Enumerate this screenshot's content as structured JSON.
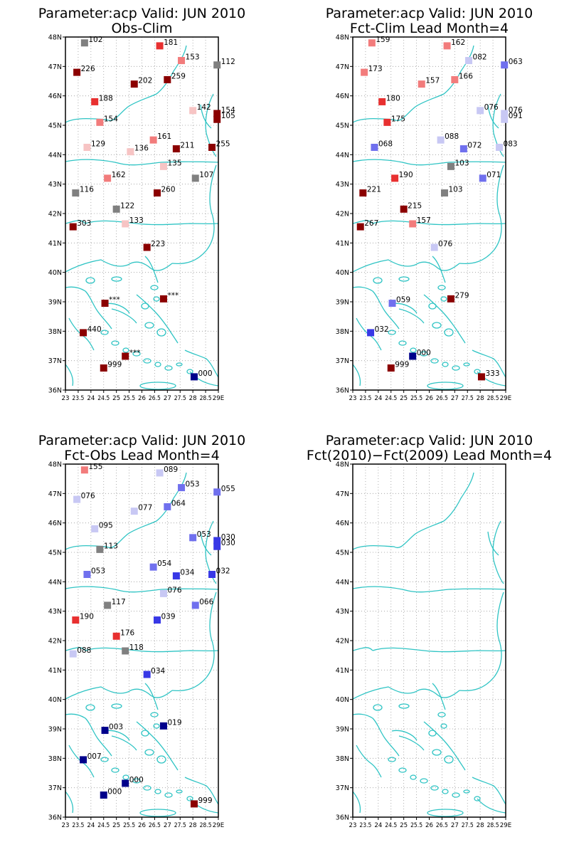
{
  "axes": {
    "lat_ticks": [
      "36N",
      "37N",
      "38N",
      "39N",
      "40N",
      "41N",
      "42N",
      "43N",
      "44N",
      "45N",
      "46N",
      "47N",
      "48N"
    ],
    "lon_ticks": [
      "23",
      "23.5",
      "24",
      "24.5",
      "25",
      "25.5",
      "26",
      "26.5",
      "27",
      "27.5",
      "28",
      "28.5",
      "29E"
    ],
    "lon_range": [
      23,
      29
    ],
    "lat_range": [
      36,
      48
    ]
  },
  "colors": {
    "coast": "#2fc4c4",
    "grid": "#9a9a9a",
    "frame": "#000000",
    "scale": {
      "gray": "#808080",
      "dark_red": "#8b0000",
      "red": "#e83030",
      "salmon": "#f27c7c",
      "pink": "#f7c4c4",
      "light_blue": "#c8c8f4",
      "blue": "#7070ee",
      "med_blue": "#3838e6",
      "dark_blue": "#00008b"
    }
  },
  "panels": [
    {
      "title1": "Parameter:acp Valid: JUN 2010",
      "title2": "Obs-Clim",
      "points": [
        {
          "lon": 23.75,
          "lat": 47.8,
          "label": "102",
          "c": "gray"
        },
        {
          "lon": 26.7,
          "lat": 47.7,
          "label": "181",
          "c": "red"
        },
        {
          "lon": 27.55,
          "lat": 47.2,
          "label": "153",
          "c": "salmon"
        },
        {
          "lon": 28.95,
          "lat": 47.05,
          "label": "112",
          "c": "gray"
        },
        {
          "lon": 23.45,
          "lat": 46.8,
          "label": "226",
          "c": "dark_red"
        },
        {
          "lon": 25.7,
          "lat": 46.4,
          "label": "202",
          "c": "dark_red"
        },
        {
          "lon": 27.0,
          "lat": 46.55,
          "label": "259",
          "c": "dark_red"
        },
        {
          "lon": 24.15,
          "lat": 45.8,
          "label": "188",
          "c": "red"
        },
        {
          "lon": 28.0,
          "lat": 45.5,
          "label": "142",
          "c": "pink"
        },
        {
          "lon": 28.95,
          "lat": 45.4,
          "label": "154",
          "c": "dark_red"
        },
        {
          "lon": 28.95,
          "lat": 45.2,
          "label": "105",
          "c": "dark_red"
        },
        {
          "lon": 24.35,
          "lat": 45.1,
          "label": "154",
          "c": "salmon"
        },
        {
          "lon": 26.45,
          "lat": 44.5,
          "label": "161",
          "c": "salmon"
        },
        {
          "lon": 23.85,
          "lat": 44.25,
          "label": "129",
          "c": "pink"
        },
        {
          "lon": 25.55,
          "lat": 44.1,
          "label": "136",
          "c": "pink"
        },
        {
          "lon": 27.35,
          "lat": 44.2,
          "label": "211",
          "c": "dark_red"
        },
        {
          "lon": 28.75,
          "lat": 44.25,
          "label": "255",
          "c": "dark_red"
        },
        {
          "lon": 26.85,
          "lat": 43.6,
          "label": "135",
          "c": "pink"
        },
        {
          "lon": 28.1,
          "lat": 43.2,
          "label": "107",
          "c": "gray"
        },
        {
          "lon": 24.65,
          "lat": 43.2,
          "label": "162",
          "c": "salmon"
        },
        {
          "lon": 23.4,
          "lat": 42.7,
          "label": "116",
          "c": "gray"
        },
        {
          "lon": 26.6,
          "lat": 42.7,
          "label": "260",
          "c": "dark_red"
        },
        {
          "lon": 25.0,
          "lat": 42.15,
          "label": "122",
          "c": "gray"
        },
        {
          "lon": 25.35,
          "lat": 41.65,
          "label": "133",
          "c": "pink"
        },
        {
          "lon": 23.3,
          "lat": 41.55,
          "label": "303",
          "c": "dark_red"
        },
        {
          "lon": 26.2,
          "lat": 40.85,
          "label": "223",
          "c": "dark_red"
        },
        {
          "lon": 24.55,
          "lat": 38.95,
          "label": "***",
          "c": "dark_red"
        },
        {
          "lon": 26.85,
          "lat": 39.1,
          "label": "***",
          "c": "dark_red"
        },
        {
          "lon": 23.7,
          "lat": 37.95,
          "label": "440",
          "c": "dark_red"
        },
        {
          "lon": 25.35,
          "lat": 37.15,
          "label": "***",
          "c": "dark_red"
        },
        {
          "lon": 24.5,
          "lat": 36.75,
          "label": "999",
          "c": "dark_red"
        },
        {
          "lon": 28.05,
          "lat": 36.45,
          "label": "000",
          "c": "dark_blue"
        }
      ]
    },
    {
      "title1": "Parameter:acp Valid: JUN 2010",
      "title2": "Fct-Clim Lead Month=4",
      "points": [
        {
          "lon": 23.75,
          "lat": 47.8,
          "label": "159",
          "c": "salmon"
        },
        {
          "lon": 26.7,
          "lat": 47.7,
          "label": "162",
          "c": "salmon"
        },
        {
          "lon": 27.55,
          "lat": 47.2,
          "label": "082",
          "c": "light_blue"
        },
        {
          "lon": 28.95,
          "lat": 47.05,
          "label": "063",
          "c": "blue"
        },
        {
          "lon": 23.45,
          "lat": 46.8,
          "label": "173",
          "c": "salmon"
        },
        {
          "lon": 25.7,
          "lat": 46.4,
          "label": "157",
          "c": "salmon"
        },
        {
          "lon": 27.0,
          "lat": 46.55,
          "label": "166",
          "c": "salmon"
        },
        {
          "lon": 24.15,
          "lat": 45.8,
          "label": "180",
          "c": "red"
        },
        {
          "lon": 28.0,
          "lat": 45.5,
          "label": "076",
          "c": "light_blue"
        },
        {
          "lon": 28.95,
          "lat": 45.4,
          "label": "076",
          "c": "light_blue"
        },
        {
          "lon": 28.95,
          "lat": 45.2,
          "label": "091",
          "c": "light_blue"
        },
        {
          "lon": 24.35,
          "lat": 45.1,
          "label": "175",
          "c": "red"
        },
        {
          "lon": 26.45,
          "lat": 44.5,
          "label": "088",
          "c": "light_blue"
        },
        {
          "lon": 23.85,
          "lat": 44.25,
          "label": "068",
          "c": "blue"
        },
        {
          "lon": 25.55,
          "lat": 44.1,
          "label": "",
          "c": "none"
        },
        {
          "lon": 27.35,
          "lat": 44.2,
          "label": "072",
          "c": "blue"
        },
        {
          "lon": 28.75,
          "lat": 44.25,
          "label": "083",
          "c": "light_blue"
        },
        {
          "lon": 26.85,
          "lat": 43.6,
          "label": "103",
          "c": "gray"
        },
        {
          "lon": 28.1,
          "lat": 43.2,
          "label": "071",
          "c": "blue"
        },
        {
          "lon": 24.65,
          "lat": 43.2,
          "label": "190",
          "c": "red"
        },
        {
          "lon": 23.4,
          "lat": 42.7,
          "label": "221",
          "c": "dark_red"
        },
        {
          "lon": 26.6,
          "lat": 42.7,
          "label": "103",
          "c": "gray"
        },
        {
          "lon": 25.0,
          "lat": 42.15,
          "label": "215",
          "c": "dark_red"
        },
        {
          "lon": 25.35,
          "lat": 41.65,
          "label": "157",
          "c": "salmon"
        },
        {
          "lon": 23.3,
          "lat": 41.55,
          "label": "267",
          "c": "dark_red"
        },
        {
          "lon": 26.2,
          "lat": 40.85,
          "label": "076",
          "c": "light_blue"
        },
        {
          "lon": 24.55,
          "lat": 38.95,
          "label": "059",
          "c": "blue"
        },
        {
          "lon": 26.85,
          "lat": 39.1,
          "label": "279",
          "c": "dark_red"
        },
        {
          "lon": 23.7,
          "lat": 37.95,
          "label": "032",
          "c": "med_blue"
        },
        {
          "lon": 25.35,
          "lat": 37.15,
          "label": "000",
          "c": "dark_blue"
        },
        {
          "lon": 24.5,
          "lat": 36.75,
          "label": "999",
          "c": "dark_red"
        },
        {
          "lon": 28.05,
          "lat": 36.45,
          "label": "333",
          "c": "dark_red"
        }
      ]
    },
    {
      "title1": "Parameter:acp Valid: JUN 2010",
      "title2": "Fct-Obs Lead Month=4",
      "points": [
        {
          "lon": 23.75,
          "lat": 47.8,
          "label": "155",
          "c": "salmon"
        },
        {
          "lon": 26.7,
          "lat": 47.7,
          "label": "089",
          "c": "light_blue"
        },
        {
          "lon": 27.55,
          "lat": 47.2,
          "label": "053",
          "c": "blue"
        },
        {
          "lon": 28.95,
          "lat": 47.05,
          "label": "055",
          "c": "blue"
        },
        {
          "lon": 23.45,
          "lat": 46.8,
          "label": "076",
          "c": "light_blue"
        },
        {
          "lon": 25.7,
          "lat": 46.4,
          "label": "077",
          "c": "light_blue"
        },
        {
          "lon": 27.0,
          "lat": 46.55,
          "label": "064",
          "c": "blue"
        },
        {
          "lon": 24.15,
          "lat": 45.8,
          "label": "095",
          "c": "light_blue"
        },
        {
          "lon": 28.0,
          "lat": 45.5,
          "label": "053",
          "c": "blue"
        },
        {
          "lon": 28.95,
          "lat": 45.4,
          "label": "030",
          "c": "med_blue"
        },
        {
          "lon": 28.95,
          "lat": 45.2,
          "label": "030",
          "c": "med_blue"
        },
        {
          "lon": 24.35,
          "lat": 45.1,
          "label": "113",
          "c": "gray"
        },
        {
          "lon": 26.45,
          "lat": 44.5,
          "label": "054",
          "c": "blue"
        },
        {
          "lon": 23.85,
          "lat": 44.25,
          "label": "053",
          "c": "blue"
        },
        {
          "lon": 27.35,
          "lat": 44.2,
          "label": "034",
          "c": "med_blue"
        },
        {
          "lon": 28.75,
          "lat": 44.25,
          "label": "032",
          "c": "med_blue"
        },
        {
          "lon": 26.85,
          "lat": 43.6,
          "label": "076",
          "c": "light_blue"
        },
        {
          "lon": 28.1,
          "lat": 43.2,
          "label": "066",
          "c": "blue"
        },
        {
          "lon": 24.65,
          "lat": 43.2,
          "label": "117",
          "c": "gray"
        },
        {
          "lon": 23.4,
          "lat": 42.7,
          "label": "190",
          "c": "red"
        },
        {
          "lon": 26.6,
          "lat": 42.7,
          "label": "039",
          "c": "med_blue"
        },
        {
          "lon": 25.0,
          "lat": 42.15,
          "label": "176",
          "c": "red"
        },
        {
          "lon": 25.35,
          "lat": 41.65,
          "label": "118",
          "c": "gray"
        },
        {
          "lon": 23.3,
          "lat": 41.55,
          "label": "088",
          "c": "light_blue"
        },
        {
          "lon": 26.2,
          "lat": 40.85,
          "label": "034",
          "c": "med_blue"
        },
        {
          "lon": 24.55,
          "lat": 38.95,
          "label": "003",
          "c": "dark_blue"
        },
        {
          "lon": 26.85,
          "lat": 39.1,
          "label": "019",
          "c": "dark_blue"
        },
        {
          "lon": 23.7,
          "lat": 37.95,
          "label": "007",
          "c": "dark_blue"
        },
        {
          "lon": 25.35,
          "lat": 37.15,
          "label": "000",
          "c": "dark_blue"
        },
        {
          "lon": 24.5,
          "lat": 36.75,
          "label": "000",
          "c": "dark_blue"
        },
        {
          "lon": 28.05,
          "lat": 36.45,
          "label": "999",
          "c": "dark_red"
        }
      ]
    },
    {
      "title1": "Parameter:acp Valid: JUN 2010",
      "title2": "Fct(2010)−Fct(2009) Lead Month=4",
      "points": []
    }
  ]
}
